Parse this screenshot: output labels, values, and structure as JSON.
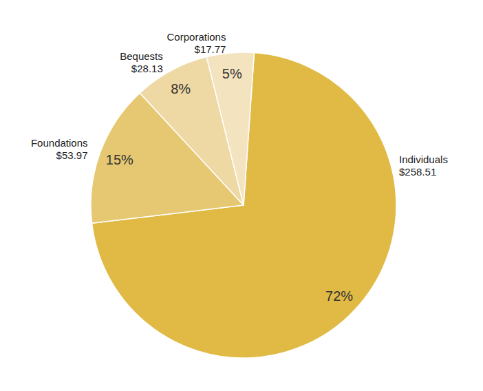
{
  "chart_data": {
    "type": "pie",
    "categories": [
      "Individuals",
      "Foundations",
      "Bequests",
      "Corporations"
    ],
    "values": [
      72,
      15,
      8,
      5
    ],
    "value_labels": [
      "72%",
      "15%",
      "8%",
      "5%"
    ],
    "amounts": [
      258.51,
      53.97,
      28.13,
      17.77
    ],
    "amount_labels": [
      "$258.51",
      "$53.97",
      "$28.13",
      "$17.77"
    ],
    "colors": [
      "#e0ba45",
      "#e6c872",
      "#eed9a4",
      "#f4e3bf"
    ],
    "data_labels": true
  }
}
